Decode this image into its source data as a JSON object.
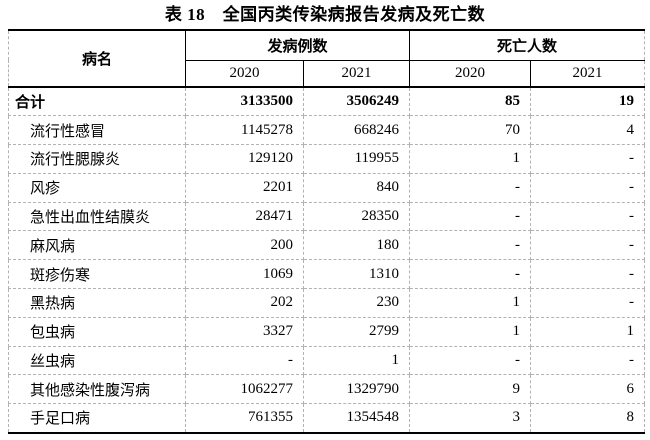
{
  "title": "表 18　全国丙类传染病报告发病及死亡数",
  "table": {
    "header": {
      "disease": "病名",
      "cases_group": "发病例数",
      "deaths_group": "死亡人数",
      "years": [
        "2020",
        "2021"
      ]
    },
    "rows": [
      {
        "name": "合计",
        "bold": true,
        "indent": false,
        "cases_2020": "3133500",
        "cases_2021": "3506249",
        "deaths_2020": "85",
        "deaths_2021": "19"
      },
      {
        "name": "流行性感冒",
        "cases_2020": "1145278",
        "cases_2021": "668246",
        "deaths_2020": "70",
        "deaths_2021": "4"
      },
      {
        "name": "流行性腮腺炎",
        "cases_2020": "129120",
        "cases_2021": "119955",
        "deaths_2020": "1",
        "deaths_2021": "-"
      },
      {
        "name": "风疹",
        "cases_2020": "2201",
        "cases_2021": "840",
        "deaths_2020": "-",
        "deaths_2021": "-"
      },
      {
        "name": "急性出血性结膜炎",
        "cases_2020": "28471",
        "cases_2021": "28350",
        "deaths_2020": "-",
        "deaths_2021": "-"
      },
      {
        "name": "麻风病",
        "cases_2020": "200",
        "cases_2021": "180",
        "deaths_2020": "-",
        "deaths_2021": "-"
      },
      {
        "name": "斑疹伤寒",
        "cases_2020": "1069",
        "cases_2021": "1310",
        "deaths_2020": "-",
        "deaths_2021": "-"
      },
      {
        "name": "黑热病",
        "cases_2020": "202",
        "cases_2021": "230",
        "deaths_2020": "1",
        "deaths_2021": "-"
      },
      {
        "name": "包虫病",
        "cases_2020": "3327",
        "cases_2021": "2799",
        "deaths_2020": "1",
        "deaths_2021": "1"
      },
      {
        "name": "丝虫病",
        "cases_2020": "-",
        "cases_2021": "1",
        "deaths_2020": "-",
        "deaths_2021": "-"
      },
      {
        "name": "其他感染性腹泻病",
        "cases_2020": "1062277",
        "cases_2021": "1329790",
        "deaths_2020": "9",
        "deaths_2021": "6"
      },
      {
        "name": "手足口病",
        "cases_2020": "761355",
        "cases_2021": "1354548",
        "deaths_2020": "3",
        "deaths_2021": "8"
      }
    ]
  },
  "colors": {
    "text": "#000000",
    "heavy_border": "#000000",
    "light_border": "#b3b3b3",
    "background": "#ffffff"
  }
}
